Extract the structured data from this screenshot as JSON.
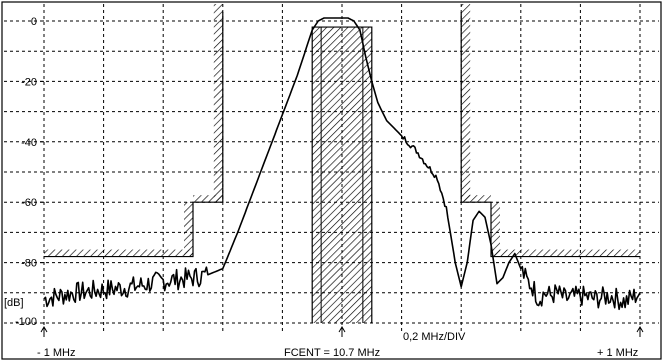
{
  "chart_data": {
    "type": "line",
    "x_div_label": "0,2 MHz/DIV",
    "y_unit": "[dB]",
    "y_ticks": [
      "0",
      "-20",
      "-40",
      "-60",
      "-80",
      "-100"
    ],
    "y_tick_values": [
      0,
      -20,
      -40,
      -60,
      -80,
      -100
    ],
    "ylim": [
      -100,
      3
    ],
    "xlim": [
      -1.0,
      1.0
    ],
    "x_divisions": 10,
    "grid": true,
    "center_label": "FCENT = 10.7 MHz",
    "left_label": "- 1 MHz",
    "right_label": "+ 1 MHz",
    "markers": [
      {
        "name": "left-edge-arrow",
        "x": -1.0
      },
      {
        "name": "center-arrow",
        "x": 0.0
      },
      {
        "name": "right-edge-arrow",
        "x": 1.0
      }
    ],
    "mask_upper_left": [
      [
        -1.0,
        -78
      ],
      [
        -0.5,
        -78
      ],
      [
        -0.5,
        -60
      ],
      [
        -0.4,
        -60
      ],
      [
        -0.4,
        3
      ]
    ],
    "mask_upper_right": [
      [
        0.4,
        3
      ],
      [
        0.4,
        -60
      ],
      [
        0.5,
        -60
      ],
      [
        0.5,
        -78
      ],
      [
        1.0,
        -78
      ]
    ],
    "mask_passband": [
      [
        -0.1,
        -100
      ],
      [
        -0.1,
        -2
      ],
      [
        0.1,
        -2
      ],
      [
        0.1,
        -100
      ]
    ],
    "series": [
      {
        "values_x": [
          -1.0,
          -0.9,
          -0.8,
          -0.7,
          -0.6,
          -0.5,
          -0.45,
          -0.4,
          -0.35,
          -0.3,
          -0.25,
          -0.2,
          -0.15,
          -0.1,
          -0.08,
          -0.06,
          -0.04,
          -0.02,
          0.0,
          0.02,
          0.04,
          0.06,
          0.08,
          0.1,
          0.12,
          0.15,
          0.2,
          0.25,
          0.28,
          0.32,
          0.35,
          0.38,
          0.4,
          0.42,
          0.44,
          0.46,
          0.48,
          0.5,
          0.52,
          0.54,
          0.56,
          0.58,
          0.6,
          0.62,
          0.64,
          0.66,
          0.68,
          0.7,
          0.72,
          0.75,
          0.8,
          0.85,
          0.9,
          0.95,
          1.0
        ],
        "values_y": [
          -92,
          -90,
          -89,
          -88,
          -86,
          -85,
          -84,
          -82,
          -70,
          -57,
          -44,
          -31,
          -18,
          -3,
          0,
          1,
          1,
          1,
          1,
          1,
          0,
          -3,
          -12,
          -20,
          -27,
          -33,
          -38,
          -43,
          -47,
          -52,
          -62,
          -80,
          -88,
          -80,
          -66,
          -63,
          -65,
          -74,
          -87,
          -85,
          -80,
          -77,
          -82,
          -86,
          -88,
          -92,
          -90,
          -91,
          -90,
          -92,
          -91,
          -92,
          -91,
          -93,
          -90
        ]
      }
    ]
  }
}
